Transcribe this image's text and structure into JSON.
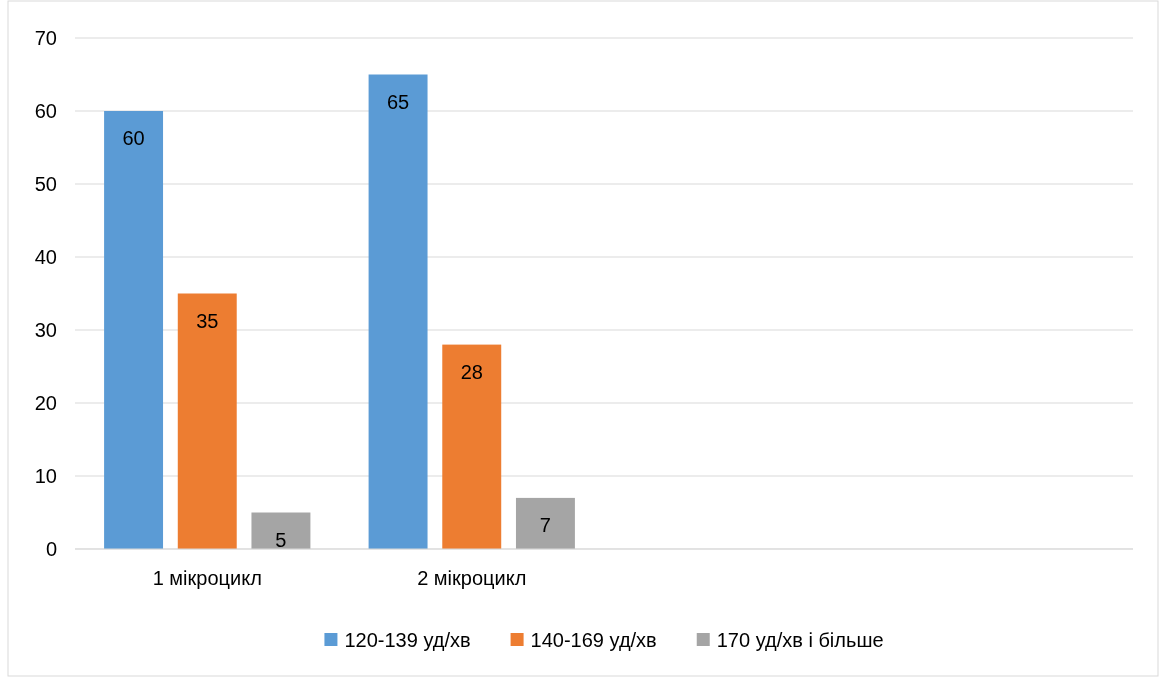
{
  "chart_data": {
    "type": "bar",
    "categories": [
      "1 мікроцикл",
      "2 мікроцикл",
      null,
      null
    ],
    "series": [
      {
        "name": "120-139 уд/хв",
        "color": "#5b9bd5",
        "values": [
          60,
          65,
          null,
          null
        ]
      },
      {
        "name": "140-169 уд/хв",
        "color": "#ed7d31",
        "values": [
          35,
          28,
          null,
          null
        ]
      },
      {
        "name": "170 уд/хв і більше",
        "color": "#a5a5a5",
        "values": [
          5,
          7,
          null,
          null
        ]
      }
    ],
    "ylim": [
      0,
      70
    ],
    "yticks": [
      0,
      10,
      20,
      30,
      40,
      50,
      60,
      70
    ],
    "grid": "y",
    "legend": "bottom",
    "data_labels": true
  }
}
